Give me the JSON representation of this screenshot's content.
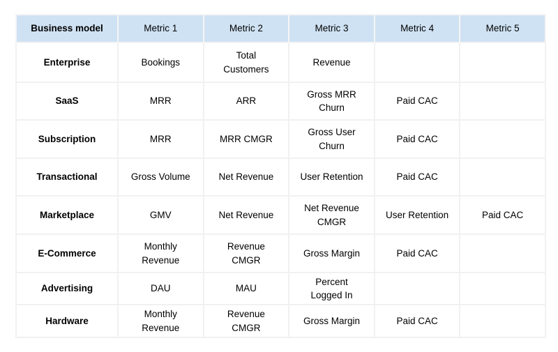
{
  "colors": {
    "header_background": "#cfe2f3",
    "cell_border": "#f1f1f1",
    "text": "#000000",
    "page_background": "#ffffff"
  },
  "table": {
    "headers": [
      "Business model",
      "Metric 1",
      "Metric 2",
      "Metric 3",
      "Metric 4",
      "Metric 5"
    ],
    "rows": [
      {
        "model": "Enterprise",
        "metrics": [
          "Bookings",
          "Total\nCustomers",
          "Revenue",
          "",
          ""
        ]
      },
      {
        "model": "SaaS",
        "metrics": [
          "MRR",
          "ARR",
          "Gross MRR\nChurn",
          "Paid CAC",
          ""
        ]
      },
      {
        "model": "Subscription",
        "metrics": [
          "MRR",
          "MRR CMGR",
          "Gross User\nChurn",
          "Paid CAC",
          ""
        ]
      },
      {
        "model": "Transactional",
        "metrics": [
          "Gross Volume",
          "Net Revenue",
          "User Retention",
          "Paid CAC",
          ""
        ]
      },
      {
        "model": "Marketplace",
        "metrics": [
          "GMV",
          "Net Revenue",
          "Net Revenue\nCMGR",
          "User Retention",
          "Paid CAC"
        ]
      },
      {
        "model": "E-Commerce",
        "metrics": [
          "Monthly\nRevenue",
          "Revenue\nCMGR",
          "Gross Margin",
          "Paid CAC",
          ""
        ]
      },
      {
        "model": "Advertising",
        "metrics": [
          "DAU",
          "MAU",
          "Percent\nLogged In",
          "",
          ""
        ]
      },
      {
        "model": "Hardware",
        "metrics": [
          "Monthly\nRevenue",
          "Revenue\nCMGR",
          "Gross Margin",
          "Paid CAC",
          ""
        ]
      }
    ]
  }
}
